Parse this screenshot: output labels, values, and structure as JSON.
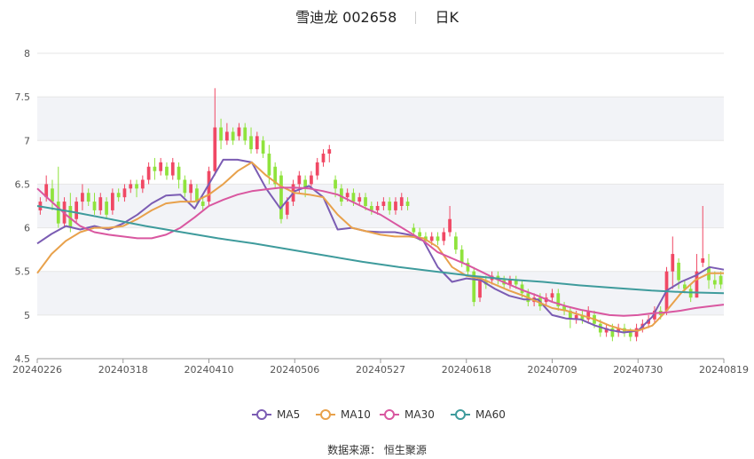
{
  "header": {
    "stock_name": "雪迪龙",
    "stock_code": "002658",
    "period": "日K"
  },
  "source": {
    "label": "数据来源：",
    "provider": "恒生聚源"
  },
  "colors": {
    "up": "#f04864",
    "down": "#8fe33c",
    "ma5": "#7b5cb3",
    "ma10": "#e8a14b",
    "ma30": "#d957a0",
    "ma60": "#3e9b9c",
    "band": "#f2f3f7",
    "grid": "#e6e6e6"
  },
  "chart_data": {
    "type": "candlestick",
    "x_tick_labels": [
      "20240226",
      "20240318",
      "20240410",
      "20240506",
      "20240527",
      "20240618",
      "20240709",
      "20240730",
      "20240819"
    ],
    "y_ticks": [
      "4.5",
      "5",
      "5.5",
      "6",
      "6.5",
      "7",
      "7.5",
      "8"
    ],
    "ylim": [
      4.5,
      8
    ],
    "legend": [
      {
        "name": "MA5",
        "color": "#7b5cb3"
      },
      {
        "name": "MA10",
        "color": "#e8a14b"
      },
      {
        "name": "MA30",
        "color": "#d957a0"
      },
      {
        "name": "MA60",
        "color": "#3e9b9c"
      }
    ],
    "candles": [
      [
        6.2,
        6.3,
        6.15,
        6.35
      ],
      [
        6.35,
        6.5,
        6.3,
        6.6
      ],
      [
        6.45,
        6.3,
        6.2,
        6.55
      ],
      [
        6.3,
        6.05,
        6.0,
        6.7
      ],
      [
        6.05,
        6.3,
        6.0,
        6.35
      ],
      [
        6.25,
        6.0,
        5.95,
        6.4
      ],
      [
        6.1,
        6.3,
        6.05,
        6.35
      ],
      [
        6.3,
        6.4,
        6.2,
        6.5
      ],
      [
        6.4,
        6.3,
        6.25,
        6.45
      ],
      [
        6.3,
        6.2,
        6.15,
        6.4
      ],
      [
        6.2,
        6.35,
        6.15,
        6.4
      ],
      [
        6.3,
        6.15,
        6.1,
        6.35
      ],
      [
        6.2,
        6.4,
        6.15,
        6.45
      ],
      [
        6.4,
        6.35,
        6.3,
        6.45
      ],
      [
        6.35,
        6.45,
        6.3,
        6.5
      ],
      [
        6.45,
        6.5,
        6.4,
        6.55
      ],
      [
        6.5,
        6.45,
        6.35,
        6.55
      ],
      [
        6.45,
        6.55,
        6.4,
        6.6
      ],
      [
        6.55,
        6.7,
        6.5,
        6.75
      ],
      [
        6.7,
        6.65,
        6.55,
        6.8
      ],
      [
        6.65,
        6.75,
        6.6,
        6.8
      ],
      [
        6.7,
        6.6,
        6.55,
        6.75
      ],
      [
        6.6,
        6.75,
        6.55,
        6.8
      ],
      [
        6.7,
        6.55,
        6.45,
        6.75
      ],
      [
        6.55,
        6.4,
        6.35,
        6.6
      ],
      [
        6.4,
        6.5,
        6.3,
        6.55
      ],
      [
        6.45,
        6.3,
        6.25,
        6.5
      ],
      [
        6.3,
        6.25,
        6.2,
        6.35
      ],
      [
        6.3,
        6.65,
        6.25,
        6.7
      ],
      [
        6.65,
        7.15,
        6.6,
        7.6
      ],
      [
        7.15,
        7.0,
        6.9,
        7.25
      ],
      [
        7.0,
        7.1,
        6.95,
        7.2
      ],
      [
        7.1,
        7.0,
        6.95,
        7.15
      ],
      [
        7.05,
        7.15,
        7.0,
        7.2
      ],
      [
        7.15,
        7.0,
        6.95,
        7.2
      ],
      [
        7.05,
        6.9,
        6.85,
        7.15
      ],
      [
        6.9,
        7.05,
        6.85,
        7.1
      ],
      [
        7.0,
        6.85,
        6.8,
        7.05
      ],
      [
        6.85,
        6.6,
        6.5,
        6.95
      ],
      [
        6.7,
        6.5,
        6.45,
        6.75
      ],
      [
        6.6,
        6.1,
        6.05,
        6.65
      ],
      [
        6.15,
        6.3,
        6.1,
        6.35
      ],
      [
        6.3,
        6.5,
        6.25,
        6.55
      ],
      [
        6.5,
        6.6,
        6.4,
        6.65
      ],
      [
        6.55,
        6.45,
        6.35,
        6.6
      ],
      [
        6.5,
        6.6,
        6.45,
        6.65
      ],
      [
        6.6,
        6.75,
        6.55,
        6.8
      ],
      [
        6.75,
        6.85,
        6.7,
        6.9
      ],
      [
        6.85,
        6.9,
        6.75,
        6.95
      ],
      [
        6.55,
        6.45,
        6.35,
        6.6
      ],
      [
        6.45,
        6.3,
        6.25,
        6.5
      ],
      [
        6.35,
        6.4,
        6.3,
        6.45
      ],
      [
        6.4,
        6.3,
        6.25,
        6.45
      ],
      [
        6.3,
        6.35,
        6.25,
        6.4
      ],
      [
        6.35,
        6.25,
        6.2,
        6.4
      ],
      [
        6.25,
        6.2,
        6.15,
        6.3
      ],
      [
        6.2,
        6.25,
        6.15,
        6.3
      ],
      [
        6.25,
        6.3,
        6.2,
        6.35
      ],
      [
        6.3,
        6.2,
        6.15,
        6.35
      ],
      [
        6.2,
        6.3,
        6.15,
        6.35
      ],
      [
        6.25,
        6.35,
        6.2,
        6.4
      ],
      [
        6.3,
        6.25,
        6.2,
        6.35
      ],
      [
        6.0,
        5.95,
        5.9,
        6.05
      ],
      [
        5.95,
        5.9,
        5.85,
        6.0
      ],
      [
        5.9,
        5.85,
        5.8,
        5.95
      ],
      [
        5.85,
        5.9,
        5.8,
        5.95
      ],
      [
        5.9,
        5.85,
        5.8,
        5.95
      ],
      [
        5.85,
        5.95,
        5.8,
        6.0
      ],
      [
        5.95,
        6.1,
        5.9,
        6.25
      ],
      [
        5.9,
        5.75,
        5.7,
        5.95
      ],
      [
        5.75,
        5.6,
        5.55,
        5.8
      ],
      [
        5.6,
        5.5,
        5.45,
        5.65
      ],
      [
        5.5,
        5.15,
        5.1,
        5.55
      ],
      [
        5.2,
        5.4,
        5.15,
        5.45
      ],
      [
        5.4,
        5.35,
        5.3,
        5.45
      ],
      [
        5.4,
        5.45,
        5.35,
        5.5
      ],
      [
        5.45,
        5.4,
        5.35,
        5.5
      ],
      [
        5.4,
        5.35,
        5.3,
        5.45
      ],
      [
        5.35,
        5.4,
        5.3,
        5.45
      ],
      [
        5.4,
        5.35,
        5.3,
        5.45
      ],
      [
        5.35,
        5.25,
        5.2,
        5.4
      ],
      [
        5.25,
        5.15,
        5.1,
        5.3
      ],
      [
        5.15,
        5.2,
        5.1,
        5.25
      ],
      [
        5.2,
        5.1,
        5.05,
        5.25
      ],
      [
        5.15,
        5.2,
        5.1,
        5.25
      ],
      [
        5.2,
        5.25,
        5.15,
        5.3
      ],
      [
        5.25,
        5.1,
        5.05,
        5.3
      ],
      [
        5.1,
        5.05,
        5.0,
        5.15
      ],
      [
        5.05,
        4.95,
        4.85,
        5.1
      ],
      [
        4.95,
        5.0,
        4.9,
        5.05
      ],
      [
        5.0,
        4.95,
        4.9,
        5.05
      ],
      [
        4.95,
        5.05,
        4.9,
        5.1
      ],
      [
        5.0,
        4.9,
        4.85,
        5.05
      ],
      [
        4.9,
        4.8,
        4.75,
        4.95
      ],
      [
        4.8,
        4.85,
        4.75,
        4.9
      ],
      [
        4.85,
        4.75,
        4.7,
        4.9
      ],
      [
        4.8,
        4.85,
        4.75,
        4.9
      ],
      [
        4.85,
        4.8,
        4.75,
        4.9
      ],
      [
        4.8,
        4.75,
        4.7,
        4.85
      ],
      [
        4.75,
        4.85,
        4.7,
        4.9
      ],
      [
        4.85,
        4.9,
        4.8,
        4.95
      ],
      [
        4.9,
        4.95,
        4.85,
        5.0
      ],
      [
        4.95,
        5.05,
        4.9,
        5.1
      ],
      [
        5.05,
        5.0,
        4.95,
        5.1
      ],
      [
        5.05,
        5.5,
        5.0,
        5.55
      ],
      [
        5.5,
        5.7,
        5.3,
        5.9
      ],
      [
        5.6,
        5.4,
        5.3,
        5.65
      ],
      [
        5.35,
        5.3,
        5.25,
        5.4
      ],
      [
        5.3,
        5.2,
        5.15,
        5.35
      ],
      [
        5.2,
        5.5,
        5.2,
        5.7
      ],
      [
        5.6,
        5.65,
        5.55,
        6.25
      ],
      [
        5.55,
        5.4,
        5.3,
        5.7
      ],
      [
        5.4,
        5.35,
        5.3,
        5.5
      ],
      [
        5.45,
        5.35,
        5.3,
        5.5
      ]
    ],
    "ma_series": [
      {
        "name": "MA5",
        "values": [
          5.82,
          5.93,
          6.02,
          5.98,
          6.02,
          5.98,
          6.05,
          6.15,
          6.28,
          6.37,
          6.38,
          6.22,
          6.5,
          6.78,
          6.78,
          6.75,
          6.45,
          6.22,
          6.42,
          6.48,
          6.35,
          5.98,
          6.0,
          5.96,
          5.95,
          5.95,
          5.92,
          5.85,
          5.55,
          5.38,
          5.42,
          5.4,
          5.3,
          5.22,
          5.18,
          5.18,
          5.0,
          4.96,
          4.95,
          4.88,
          4.83,
          4.8,
          4.82,
          4.98,
          5.28,
          5.38,
          5.45,
          5.55,
          5.52
        ]
      },
      {
        "name": "MA10",
        "values": [
          5.48,
          5.7,
          5.85,
          5.95,
          6.0,
          6.0,
          6.02,
          6.1,
          6.2,
          6.28,
          6.3,
          6.3,
          6.38,
          6.5,
          6.65,
          6.75,
          6.6,
          6.48,
          6.4,
          6.38,
          6.35,
          6.15,
          6.0,
          5.96,
          5.92,
          5.9,
          5.9,
          5.88,
          5.78,
          5.55,
          5.45,
          5.42,
          5.35,
          5.28,
          5.22,
          5.15,
          5.08,
          5.05,
          5.0,
          4.95,
          4.88,
          4.83,
          4.82,
          4.88,
          5.05,
          5.25,
          5.4,
          5.48,
          5.48
        ]
      },
      {
        "name": "MA30",
        "values": [
          6.45,
          6.3,
          6.15,
          6.02,
          5.95,
          5.92,
          5.9,
          5.88,
          5.88,
          5.92,
          6.0,
          6.12,
          6.25,
          6.32,
          6.38,
          6.42,
          6.44,
          6.46,
          6.46,
          6.45,
          6.42,
          6.38,
          6.3,
          6.22,
          6.15,
          6.05,
          5.95,
          5.85,
          5.72,
          5.65,
          5.58,
          5.5,
          5.42,
          5.35,
          5.28,
          5.22,
          5.15,
          5.1,
          5.06,
          5.03,
          5.0,
          4.99,
          5.0,
          5.02,
          5.03,
          5.05,
          5.08,
          5.1,
          5.12
        ]
      },
      {
        "name": "MA60",
        "values": [
          6.25,
          6.18,
          6.1,
          6.02,
          5.95,
          5.88,
          5.82,
          5.75,
          5.68,
          5.61,
          5.55,
          5.5,
          5.45,
          5.41,
          5.38,
          5.34,
          5.31,
          5.28,
          5.26,
          5.25
        ]
      }
    ]
  }
}
